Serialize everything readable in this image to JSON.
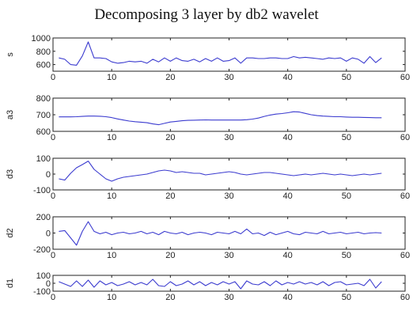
{
  "title": "Decomposing 3 layer by db2 wavelet",
  "colors": {
    "line": "#3b3bcf",
    "axis": "#222222"
  },
  "chart_data": [
    {
      "type": "line",
      "ylabel": "s",
      "xlim": [
        0,
        60
      ],
      "ylim": [
        500,
        1000
      ],
      "xticks": [
        0,
        10,
        20,
        30,
        40,
        50,
        60
      ],
      "yticks": [
        600,
        800,
        1000
      ],
      "series": [
        {
          "x": [
            1,
            2,
            3,
            4,
            5,
            6,
            7,
            8,
            9,
            10,
            11,
            12,
            13,
            14,
            15,
            16,
            17,
            18,
            19,
            20,
            21,
            22,
            23,
            24,
            25,
            26,
            27,
            28,
            29,
            30,
            31,
            32,
            33,
            34,
            35,
            36,
            37,
            38,
            39,
            40,
            41,
            42,
            43,
            44,
            45,
            46,
            47,
            48,
            49,
            50,
            51,
            52,
            53,
            54,
            55,
            56
          ],
          "values": [
            700,
            680,
            600,
            590,
            730,
            940,
            700,
            700,
            690,
            640,
            620,
            630,
            650,
            640,
            650,
            620,
            680,
            640,
            700,
            650,
            700,
            660,
            650,
            680,
            640,
            690,
            650,
            700,
            650,
            660,
            700,
            620,
            700,
            700,
            690,
            690,
            700,
            700,
            690,
            690,
            720,
            700,
            710,
            700,
            690,
            680,
            700,
            690,
            700,
            650,
            700,
            680,
            620,
            720,
            630,
            700
          ]
        }
      ]
    },
    {
      "type": "line",
      "ylabel": "a3",
      "xlim": [
        0,
        60
      ],
      "ylim": [
        600,
        800
      ],
      "xticks": [
        0,
        10,
        20,
        30,
        40,
        50,
        60
      ],
      "yticks": [
        600,
        700,
        800
      ],
      "series": [
        {
          "x": [
            1,
            2,
            3,
            4,
            5,
            6,
            7,
            8,
            9,
            10,
            11,
            12,
            13,
            14,
            15,
            16,
            17,
            18,
            19,
            20,
            21,
            22,
            23,
            24,
            25,
            26,
            27,
            28,
            29,
            30,
            31,
            32,
            33,
            34,
            35,
            36,
            37,
            38,
            39,
            40,
            41,
            42,
            43,
            44,
            45,
            46,
            47,
            48,
            49,
            50,
            51,
            52,
            53,
            54,
            55,
            56
          ],
          "values": [
            687,
            687,
            687,
            688,
            690,
            692,
            692,
            691,
            688,
            683,
            675,
            668,
            662,
            658,
            655,
            652,
            645,
            640,
            648,
            656,
            660,
            664,
            666,
            667,
            668,
            669,
            668,
            668,
            668,
            668,
            668,
            668,
            670,
            674,
            680,
            690,
            698,
            704,
            707,
            712,
            718,
            716,
            708,
            700,
            695,
            692,
            690,
            688,
            688,
            686,
            685,
            685,
            684,
            683,
            682,
            682
          ]
        }
      ]
    },
    {
      "type": "line",
      "ylabel": "d3",
      "xlim": [
        0,
        60
      ],
      "ylim": [
        -100,
        100
      ],
      "xticks": [
        0,
        10,
        20,
        30,
        40,
        50,
        60
      ],
      "yticks": [
        -100,
        0,
        100
      ],
      "series": [
        {
          "x": [
            1,
            2,
            3,
            4,
            5,
            6,
            7,
            8,
            9,
            10,
            11,
            12,
            13,
            14,
            15,
            16,
            17,
            18,
            19,
            20,
            21,
            22,
            23,
            24,
            25,
            26,
            27,
            28,
            29,
            30,
            31,
            32,
            33,
            34,
            35,
            36,
            37,
            38,
            39,
            40,
            41,
            42,
            43,
            44,
            45,
            46,
            47,
            48,
            49,
            50,
            51,
            52,
            53,
            54,
            55,
            56
          ],
          "values": [
            -30,
            -38,
            5,
            40,
            60,
            82,
            30,
            0,
            -30,
            -45,
            -30,
            -20,
            -15,
            -10,
            -5,
            0,
            10,
            20,
            25,
            20,
            10,
            15,
            10,
            5,
            5,
            -5,
            0,
            5,
            10,
            15,
            10,
            0,
            -5,
            0,
            5,
            10,
            10,
            5,
            0,
            -5,
            -10,
            -5,
            0,
            -5,
            0,
            5,
            0,
            -5,
            0,
            -5,
            -10,
            -5,
            0,
            -5,
            0,
            5
          ]
        }
      ]
    },
    {
      "type": "line",
      "ylabel": "d2",
      "xlim": [
        0,
        60
      ],
      "ylim": [
        -200,
        200
      ],
      "xticks": [
        0,
        10,
        20,
        30,
        40,
        50,
        60
      ],
      "yticks": [
        -200,
        0,
        200
      ],
      "series": [
        {
          "x": [
            1,
            2,
            3,
            4,
            5,
            6,
            7,
            8,
            9,
            10,
            11,
            12,
            13,
            14,
            15,
            16,
            17,
            18,
            19,
            20,
            21,
            22,
            23,
            24,
            25,
            26,
            27,
            28,
            29,
            30,
            31,
            32,
            33,
            34,
            35,
            36,
            37,
            38,
            39,
            40,
            41,
            42,
            43,
            44,
            45,
            46,
            47,
            48,
            49,
            50,
            51,
            52,
            53,
            54,
            55,
            56
          ],
          "values": [
            20,
            30,
            -60,
            -150,
            20,
            140,
            20,
            -10,
            10,
            -20,
            0,
            10,
            -10,
            0,
            20,
            -10,
            10,
            -20,
            20,
            0,
            -10,
            10,
            -20,
            0,
            10,
            0,
            -20,
            10,
            0,
            -10,
            20,
            -10,
            50,
            -10,
            0,
            -30,
            10,
            -20,
            0,
            20,
            -10,
            -20,
            10,
            0,
            -10,
            20,
            -10,
            0,
            10,
            -10,
            0,
            10,
            -10,
            0,
            5,
            0
          ]
        }
      ]
    },
    {
      "type": "line",
      "ylabel": "d1",
      "xlim": [
        0,
        60
      ],
      "ylim": [
        -100,
        100
      ],
      "xticks": [
        0,
        10,
        20,
        30,
        40,
        50,
        60
      ],
      "yticks": [
        -100,
        0,
        100
      ],
      "series": [
        {
          "x": [
            1,
            2,
            3,
            4,
            5,
            6,
            7,
            8,
            9,
            10,
            11,
            12,
            13,
            14,
            15,
            16,
            17,
            18,
            19,
            20,
            21,
            22,
            23,
            24,
            25,
            26,
            27,
            28,
            29,
            30,
            31,
            32,
            33,
            34,
            35,
            36,
            37,
            38,
            39,
            40,
            41,
            42,
            43,
            44,
            45,
            46,
            47,
            48,
            49,
            50,
            51,
            52,
            53,
            54,
            55,
            56
          ],
          "values": [
            20,
            -10,
            -40,
            30,
            -40,
            40,
            -50,
            30,
            -20,
            10,
            -30,
            -10,
            20,
            -20,
            10,
            -20,
            50,
            -30,
            -40,
            20,
            -30,
            -10,
            30,
            -20,
            20,
            -30,
            10,
            -20,
            20,
            -10,
            20,
            -70,
            30,
            -10,
            -20,
            20,
            -30,
            30,
            -20,
            10,
            -10,
            20,
            -10,
            10,
            -20,
            20,
            -30,
            10,
            20,
            -20,
            -10,
            0,
            -30,
            50,
            -60,
            20
          ]
        }
      ]
    }
  ]
}
